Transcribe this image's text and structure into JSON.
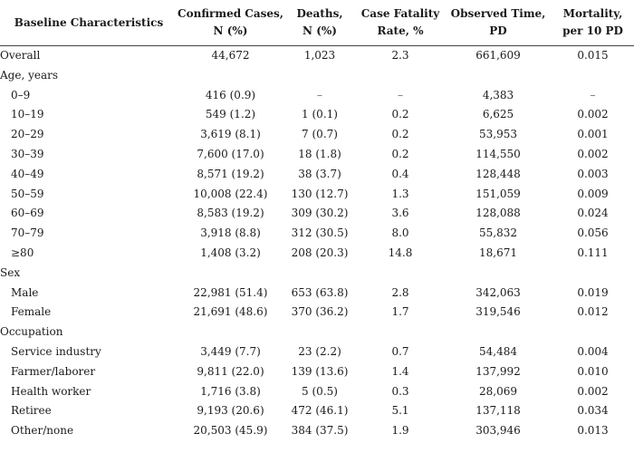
{
  "headers": [
    [
      "Baseline Characteristics"
    ],
    [
      "Confirmed Cases,",
      "N (%)"
    ],
    [
      "Deaths,",
      "N (%)"
    ],
    [
      "Case Fatality",
      "Rate, %"
    ],
    [
      "Observed Time,",
      "PD"
    ],
    [
      "Mortality,",
      "per 10 PD"
    ]
  ],
  "rows": [
    {
      "type": "data",
      "indent": false,
      "label": "Overall",
      "cells": [
        "44,672",
        "1,023",
        "2.3",
        "661,609",
        "0.015"
      ]
    },
    {
      "type": "section",
      "label": "Age, years"
    },
    {
      "type": "data",
      "indent": true,
      "label": "0–9",
      "cells": [
        "416 (0.9)",
        "–",
        "–",
        "4,383",
        "–"
      ]
    },
    {
      "type": "data",
      "indent": true,
      "label": "10–19",
      "cells": [
        "549 (1.2)",
        "1 (0.1)",
        "0.2",
        "6,625",
        "0.002"
      ]
    },
    {
      "type": "data",
      "indent": true,
      "label": "20–29",
      "cells": [
        "3,619 (8.1)",
        "7 (0.7)",
        "0.2",
        "53,953",
        "0.001"
      ]
    },
    {
      "type": "data",
      "indent": true,
      "label": "30–39",
      "cells": [
        "7,600 (17.0)",
        "18 (1.8)",
        "0.2",
        "114,550",
        "0.002"
      ]
    },
    {
      "type": "data",
      "indent": true,
      "label": "40–49",
      "cells": [
        "8,571 (19.2)",
        "38 (3.7)",
        "0.4",
        "128,448",
        "0.003"
      ]
    },
    {
      "type": "data",
      "indent": true,
      "label": "50–59",
      "cells": [
        "10,008 (22.4)",
        "130 (12.7)",
        "1.3",
        "151,059",
        "0.009"
      ]
    },
    {
      "type": "data",
      "indent": true,
      "label": "60–69",
      "cells": [
        "8,583 (19.2)",
        "309 (30.2)",
        "3.6",
        "128,088",
        "0.024"
      ]
    },
    {
      "type": "data",
      "indent": true,
      "label": "70–79",
      "cells": [
        "3,918 (8.8)",
        "312 (30.5)",
        "8.0",
        "55,832",
        "0.056"
      ]
    },
    {
      "type": "data",
      "indent": true,
      "label": "≥80",
      "cells": [
        "1,408 (3.2)",
        "208 (20.3)",
        "14.8",
        "18,671",
        "0.111"
      ]
    },
    {
      "type": "section",
      "label": "Sex"
    },
    {
      "type": "data",
      "indent": true,
      "label": "Male",
      "cells": [
        "22,981 (51.4)",
        "653 (63.8)",
        "2.8",
        "342,063",
        "0.019"
      ]
    },
    {
      "type": "data",
      "indent": true,
      "label": "Female",
      "cells": [
        "21,691 (48.6)",
        "370 (36.2)",
        "1.7",
        "319,546",
        "0.012"
      ]
    },
    {
      "type": "section",
      "label": "Occupation"
    },
    {
      "type": "data",
      "indent": true,
      "label": "Service industry",
      "cells": [
        "3,449 (7.7)",
        "23 (2.2)",
        "0.7",
        "54,484",
        "0.004"
      ]
    },
    {
      "type": "data",
      "indent": true,
      "label": "Farmer/laborer",
      "cells": [
        "9,811 (22.0)",
        "139 (13.6)",
        "1.4",
        "137,992",
        "0.010"
      ]
    },
    {
      "type": "data",
      "indent": true,
      "label": "Health worker",
      "cells": [
        "1,716 (3.8)",
        "5 (0.5)",
        "0.3",
        "28,069",
        "0.002"
      ]
    },
    {
      "type": "data",
      "indent": true,
      "label": "Retiree",
      "cells": [
        "9,193 (20.6)",
        "472 (46.1)",
        "5.1",
        "137,118",
        "0.034"
      ]
    },
    {
      "type": "data",
      "indent": true,
      "label": "Other/none",
      "cells": [
        "20,503 (45.9)",
        "384 (37.5)",
        "1.9",
        "303,946",
        "0.013"
      ]
    }
  ]
}
